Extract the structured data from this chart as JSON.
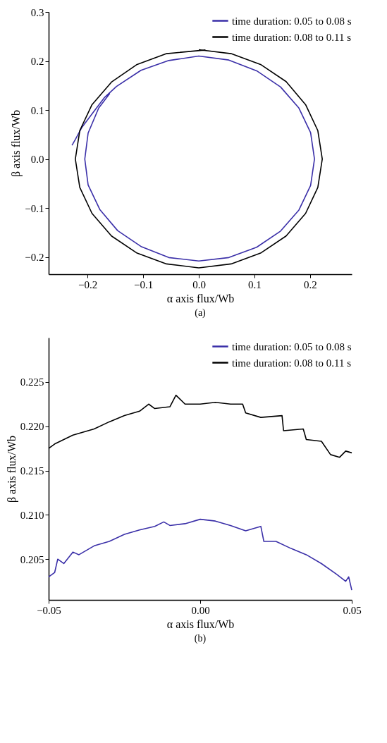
{
  "chart_data": [
    {
      "type": "line",
      "xlabel": "α axis flux/Wb",
      "ylabel": "β axis flux/Wb",
      "annotations": [
        "(a)"
      ],
      "legend": "top right",
      "xlim": [
        -0.27,
        0.275
      ],
      "ylim": [
        -0.235,
        0.3
      ],
      "xticks": [
        {
          "value": -0.2,
          "label": "−0.2"
        },
        {
          "value": -0.1,
          "label": "−0.1"
        },
        {
          "value": 0,
          "label": "0.0"
        },
        0.1,
        0.2
      ],
      "yticks": [
        {
          "value": -0.2,
          "label": "−0.2"
        },
        {
          "value": -0.1,
          "label": "−0.1"
        },
        {
          "value": 0,
          "label": "0.0"
        },
        0.1,
        0.2,
        0.3
      ],
      "series": [
        {
          "name": "time duration: 0.05 to 0.08 s",
          "color": "#3a2fa8",
          "x": [
            -0.228,
            -0.222,
            -0.21,
            -0.19,
            -0.17,
            -0.148,
            -0.104,
            -0.054,
            0.0,
            0.054,
            0.104,
            0.147,
            0.18,
            0.201,
            0.208,
            0.201,
            0.18,
            0.147,
            0.104,
            0.054,
            0.0,
            -0.054,
            -0.103,
            -0.146,
            -0.178,
            -0.199,
            -0.205,
            -0.199,
            -0.18,
            -0.16
          ],
          "values": [
            0.028,
            0.04,
            0.065,
            0.095,
            0.125,
            0.148,
            0.181,
            0.201,
            0.21,
            0.202,
            0.18,
            0.147,
            0.104,
            0.054,
            0.0,
            -0.054,
            -0.104,
            -0.147,
            -0.18,
            -0.201,
            -0.208,
            -0.201,
            -0.179,
            -0.146,
            -0.103,
            -0.053,
            0.0,
            0.053,
            0.104,
            0.134
          ]
        },
        {
          "name": "time duration: 0.08 to 0.11 s",
          "color": "#000000",
          "x": [
            0.0,
            0.058,
            0.111,
            0.157,
            0.192,
            0.214,
            0.222,
            0.214,
            0.192,
            0.157,
            0.111,
            0.058,
            0.0,
            -0.058,
            -0.111,
            -0.157,
            -0.192,
            -0.214,
            -0.222,
            -0.214,
            -0.192,
            -0.157,
            -0.111,
            -0.058,
            0.012
          ],
          "values": [
            0.223,
            0.215,
            0.193,
            0.158,
            0.111,
            0.058,
            0.0,
            -0.058,
            -0.111,
            -0.157,
            -0.192,
            -0.214,
            -0.222,
            -0.214,
            -0.192,
            -0.157,
            -0.111,
            -0.058,
            0.0,
            0.058,
            0.111,
            0.157,
            0.193,
            0.215,
            0.2225
          ]
        }
      ]
    },
    {
      "type": "line",
      "xlabel": "α axis flux/Wb",
      "ylabel": "β axis flux/Wb",
      "annotations": [
        "(b)"
      ],
      "legend": "top right",
      "xlim": [
        -0.05,
        0.05
      ],
      "ylim": [
        0.2004,
        0.23
      ],
      "xticks": [
        {
          "value": -0.05,
          "label": "−0.05"
        },
        {
          "value": 0,
          "label": "0.00"
        },
        0.05
      ],
      "yticks": [
        0.205,
        {
          "value": 0.21,
          "label": "0.210"
        },
        0.215,
        {
          "value": 0.22,
          "label": "0.220"
        },
        0.225
      ],
      "series": [
        {
          "name": "time duration: 0.05 to 0.08 s",
          "color": "#3a2fa8",
          "x": [
            -0.05,
            -0.048,
            -0.047,
            -0.045,
            -0.042,
            -0.04,
            -0.035,
            -0.03,
            -0.025,
            -0.02,
            -0.015,
            -0.012,
            -0.01,
            -0.005,
            0.0,
            0.005,
            0.01,
            0.015,
            0.02,
            0.021,
            0.025,
            0.03,
            0.035,
            0.04,
            0.045,
            0.048,
            0.049,
            0.05
          ],
          "values": [
            0.203,
            0.2035,
            0.205,
            0.2045,
            0.2058,
            0.2055,
            0.2065,
            0.207,
            0.2078,
            0.2083,
            0.2087,
            0.2092,
            0.2088,
            0.209,
            0.2095,
            0.2093,
            0.2088,
            0.2082,
            0.2087,
            0.207,
            0.207,
            0.2062,
            0.2055,
            0.2045,
            0.2033,
            0.2025,
            0.203,
            0.2015
          ]
        },
        {
          "name": "time duration: 0.08 to 0.11 s",
          "color": "#000000",
          "x": [
            -0.05,
            -0.048,
            -0.045,
            -0.042,
            -0.04,
            -0.035,
            -0.03,
            -0.025,
            -0.02,
            -0.017,
            -0.015,
            -0.01,
            -0.008,
            -0.005,
            0.0,
            0.005,
            0.01,
            0.014,
            0.015,
            0.02,
            0.027,
            0.0275,
            0.034,
            0.035,
            0.04,
            0.043,
            0.046,
            0.048,
            0.05
          ],
          "values": [
            0.2175,
            0.218,
            0.2185,
            0.219,
            0.2192,
            0.2197,
            0.2205,
            0.2212,
            0.2217,
            0.2225,
            0.222,
            0.2222,
            0.2235,
            0.2225,
            0.2225,
            0.2227,
            0.2225,
            0.2225,
            0.2215,
            0.221,
            0.2212,
            0.2195,
            0.2197,
            0.2185,
            0.2183,
            0.2168,
            0.2165,
            0.2172,
            0.217
          ]
        }
      ]
    }
  ]
}
